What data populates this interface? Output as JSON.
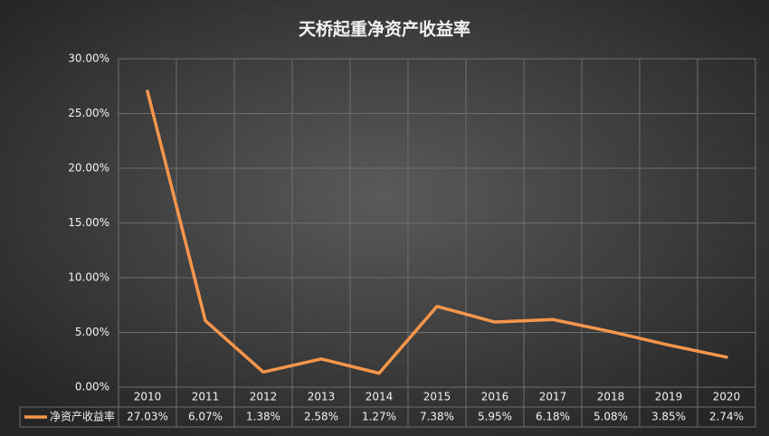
{
  "chart_data": {
    "type": "line",
    "title": "天桥起重净资产收益率",
    "categories": [
      "2010",
      "2011",
      "2012",
      "2013",
      "2014",
      "2015",
      "2016",
      "2017",
      "2018",
      "2019",
      "2020"
    ],
    "series": [
      {
        "name": "净资产收益率",
        "color": "#f7964a",
        "values": [
          27.03,
          6.07,
          1.38,
          2.58,
          1.27,
          7.38,
          5.95,
          6.18,
          5.08,
          3.85,
          2.74
        ],
        "value_labels": [
          "27.03%",
          "6.07%",
          "1.38%",
          "2.58%",
          "1.27%",
          "7.38%",
          "5.95%",
          "6.18%",
          "5.08%",
          "3.85%",
          "2.74%"
        ]
      }
    ],
    "ylim": [
      0,
      30
    ],
    "yticks": [
      {
        "value": 0,
        "label": "0.00%"
      },
      {
        "value": 5,
        "label": "5.00%"
      },
      {
        "value": 10,
        "label": "10.00%"
      },
      {
        "value": 15,
        "label": "15.00%"
      },
      {
        "value": 20,
        "label": "20.00%"
      },
      {
        "value": 25,
        "label": "25.00%"
      },
      {
        "value": 30,
        "label": "30.00%"
      }
    ],
    "grid": true
  }
}
